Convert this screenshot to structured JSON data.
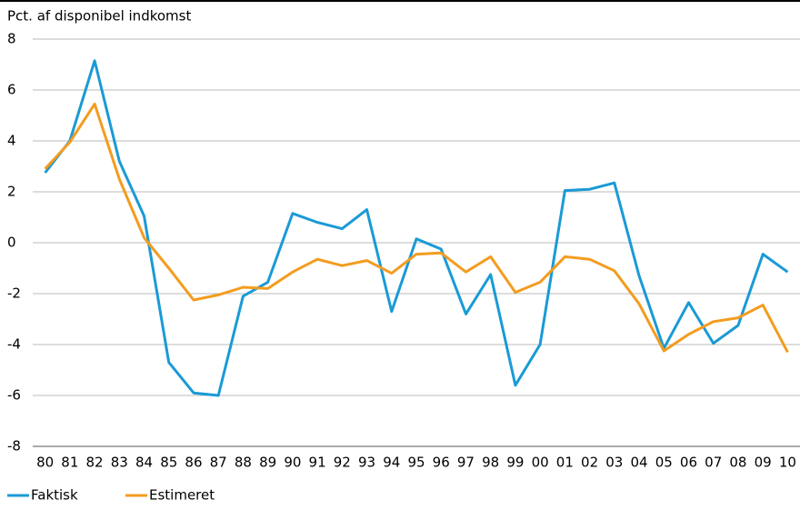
{
  "chart_data": {
    "type": "line",
    "y_label": "Pct. af disponibel indkomst",
    "categories": [
      "80",
      "81",
      "82",
      "83",
      "84",
      "85",
      "86",
      "87",
      "88",
      "89",
      "90",
      "91",
      "92",
      "93",
      "94",
      "95",
      "96",
      "97",
      "98",
      "99",
      "00",
      "01",
      "02",
      "03",
      "04",
      "05",
      "06",
      "07",
      "08",
      "09",
      "10"
    ],
    "series": [
      {
        "name": "Faktisk",
        "color": "#1a9ad6",
        "values": [
          2.75,
          4.0,
          7.15,
          3.2,
          1.05,
          -4.7,
          -5.9,
          -6.0,
          -2.1,
          -1.55,
          1.15,
          0.8,
          0.55,
          1.3,
          -2.7,
          0.15,
          -0.25,
          -2.8,
          -1.25,
          -5.6,
          -4.0,
          2.05,
          2.1,
          2.35,
          -1.3,
          -4.15,
          -2.35,
          -3.95,
          -3.25,
          -0.45,
          -1.15
        ]
      },
      {
        "name": "Estimeret",
        "color": "#f39c1f",
        "values": [
          2.9,
          3.95,
          5.45,
          2.5,
          0.2,
          -1.0,
          -2.25,
          -2.05,
          -1.75,
          -1.8,
          -1.15,
          -0.65,
          -0.9,
          -0.7,
          -1.2,
          -0.45,
          -0.4,
          -1.15,
          -0.55,
          -1.95,
          -1.55,
          -0.55,
          -0.65,
          -1.1,
          -2.4,
          -4.25,
          -3.6,
          -3.1,
          -2.95,
          -2.45,
          -4.3
        ]
      }
    ],
    "ylim": [
      -8,
      8
    ],
    "yticks": [
      -8,
      -6,
      -4,
      -2,
      0,
      2,
      4,
      6,
      8
    ],
    "grid": true
  }
}
